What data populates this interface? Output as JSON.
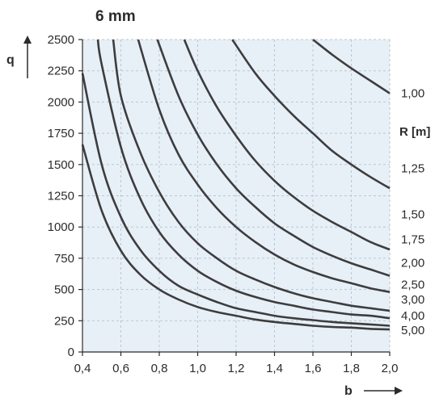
{
  "chart_data": {
    "type": "line",
    "title": "6 mm",
    "xlabel": "b",
    "ylabel": "q",
    "legend_title": "R [m]",
    "xlim": [
      0.4,
      2.0
    ],
    "ylim": [
      0,
      2500
    ],
    "x_ticks": [
      "0,4",
      "0,6",
      "0,8",
      "1,0",
      "1,2",
      "1,4",
      "1,6",
      "1,8",
      "2,0"
    ],
    "y_ticks": [
      "0",
      "250",
      "500",
      "750",
      "1000",
      "1250",
      "1500",
      "1750",
      "2000",
      "2250",
      "2500"
    ],
    "grid": true,
    "background": "#e7f0f6",
    "line_color": "#3d3d3d",
    "series": [
      {
        "name": "1,00",
        "x": [
          1.6,
          1.7,
          1.8,
          1.9,
          2.0
        ],
        "y": [
          2500,
          2380,
          2270,
          2170,
          2070
        ]
      },
      {
        "name": "1,25",
        "x": [
          1.18,
          1.3,
          1.4,
          1.5,
          1.6,
          1.7,
          1.8,
          1.9,
          2.0
        ],
        "y": [
          2500,
          2230,
          2050,
          1890,
          1750,
          1610,
          1500,
          1400,
          1310
        ]
      },
      {
        "name": "1,50",
        "x": [
          0.93,
          1.0,
          1.1,
          1.2,
          1.3,
          1.4,
          1.5,
          1.6,
          1.7,
          1.8,
          1.9,
          2.0
        ],
        "y": [
          2500,
          2250,
          1960,
          1730,
          1530,
          1370,
          1240,
          1130,
          1040,
          960,
          880,
          820
        ]
      },
      {
        "name": "1,75",
        "x": [
          0.79,
          0.9,
          1.0,
          1.1,
          1.2,
          1.3,
          1.4,
          1.5,
          1.6,
          1.7,
          1.8,
          1.9,
          2.0
        ],
        "y": [
          2500,
          2050,
          1740,
          1500,
          1310,
          1160,
          1030,
          930,
          840,
          770,
          710,
          660,
          610
        ]
      },
      {
        "name": "2,00",
        "x": [
          0.69,
          0.8,
          0.9,
          1.0,
          1.1,
          1.2,
          1.3,
          1.4,
          1.5,
          1.6,
          1.7,
          1.8,
          1.9,
          2.0
        ],
        "y": [
          2500,
          1940,
          1580,
          1340,
          1150,
          1000,
          880,
          780,
          700,
          640,
          590,
          550,
          510,
          480
        ]
      },
      {
        "name": "2,50",
        "x": [
          0.56,
          0.6,
          0.7,
          0.8,
          0.9,
          1.0,
          1.1,
          1.2,
          1.3,
          1.4,
          1.5,
          1.6,
          1.7,
          1.8,
          1.9,
          2.0
        ],
        "y": [
          2500,
          2050,
          1600,
          1280,
          1040,
          870,
          750,
          650,
          580,
          520,
          470,
          430,
          400,
          370,
          350,
          330
        ]
      },
      {
        "name": "3,00",
        "x": [
          0.48,
          0.5,
          0.6,
          0.7,
          0.8,
          0.9,
          1.0,
          1.1,
          1.2,
          1.3,
          1.4,
          1.5,
          1.6,
          1.7,
          1.8,
          1.9,
          2.0
        ],
        "y": [
          2500,
          2300,
          1640,
          1230,
          960,
          780,
          650,
          560,
          490,
          440,
          400,
          370,
          340,
          320,
          300,
          290,
          270
        ]
      },
      {
        "name": "4,00",
        "x": [
          0.4,
          0.5,
          0.6,
          0.7,
          0.8,
          0.9,
          1.0,
          1.1,
          1.2,
          1.3,
          1.4,
          1.5,
          1.6,
          1.7,
          1.8,
          1.9,
          2.0
        ],
        "y": [
          2230,
          1500,
          1080,
          820,
          650,
          530,
          460,
          400,
          350,
          320,
          290,
          270,
          255,
          240,
          230,
          220,
          210
        ]
      },
      {
        "name": "5,00",
        "x": [
          0.4,
          0.5,
          0.6,
          0.7,
          0.8,
          0.9,
          1.0,
          1.1,
          1.2,
          1.3,
          1.4,
          1.5,
          1.6,
          1.7,
          1.8,
          1.9,
          2.0
        ],
        "y": [
          1660,
          1130,
          810,
          620,
          500,
          420,
          360,
          320,
          290,
          260,
          240,
          225,
          210,
          200,
          195,
          185,
          180
        ]
      }
    ],
    "r_label_y": [
      2070,
      1470,
      1100,
      900,
      715,
      540,
      420,
      290,
      175
    ]
  }
}
